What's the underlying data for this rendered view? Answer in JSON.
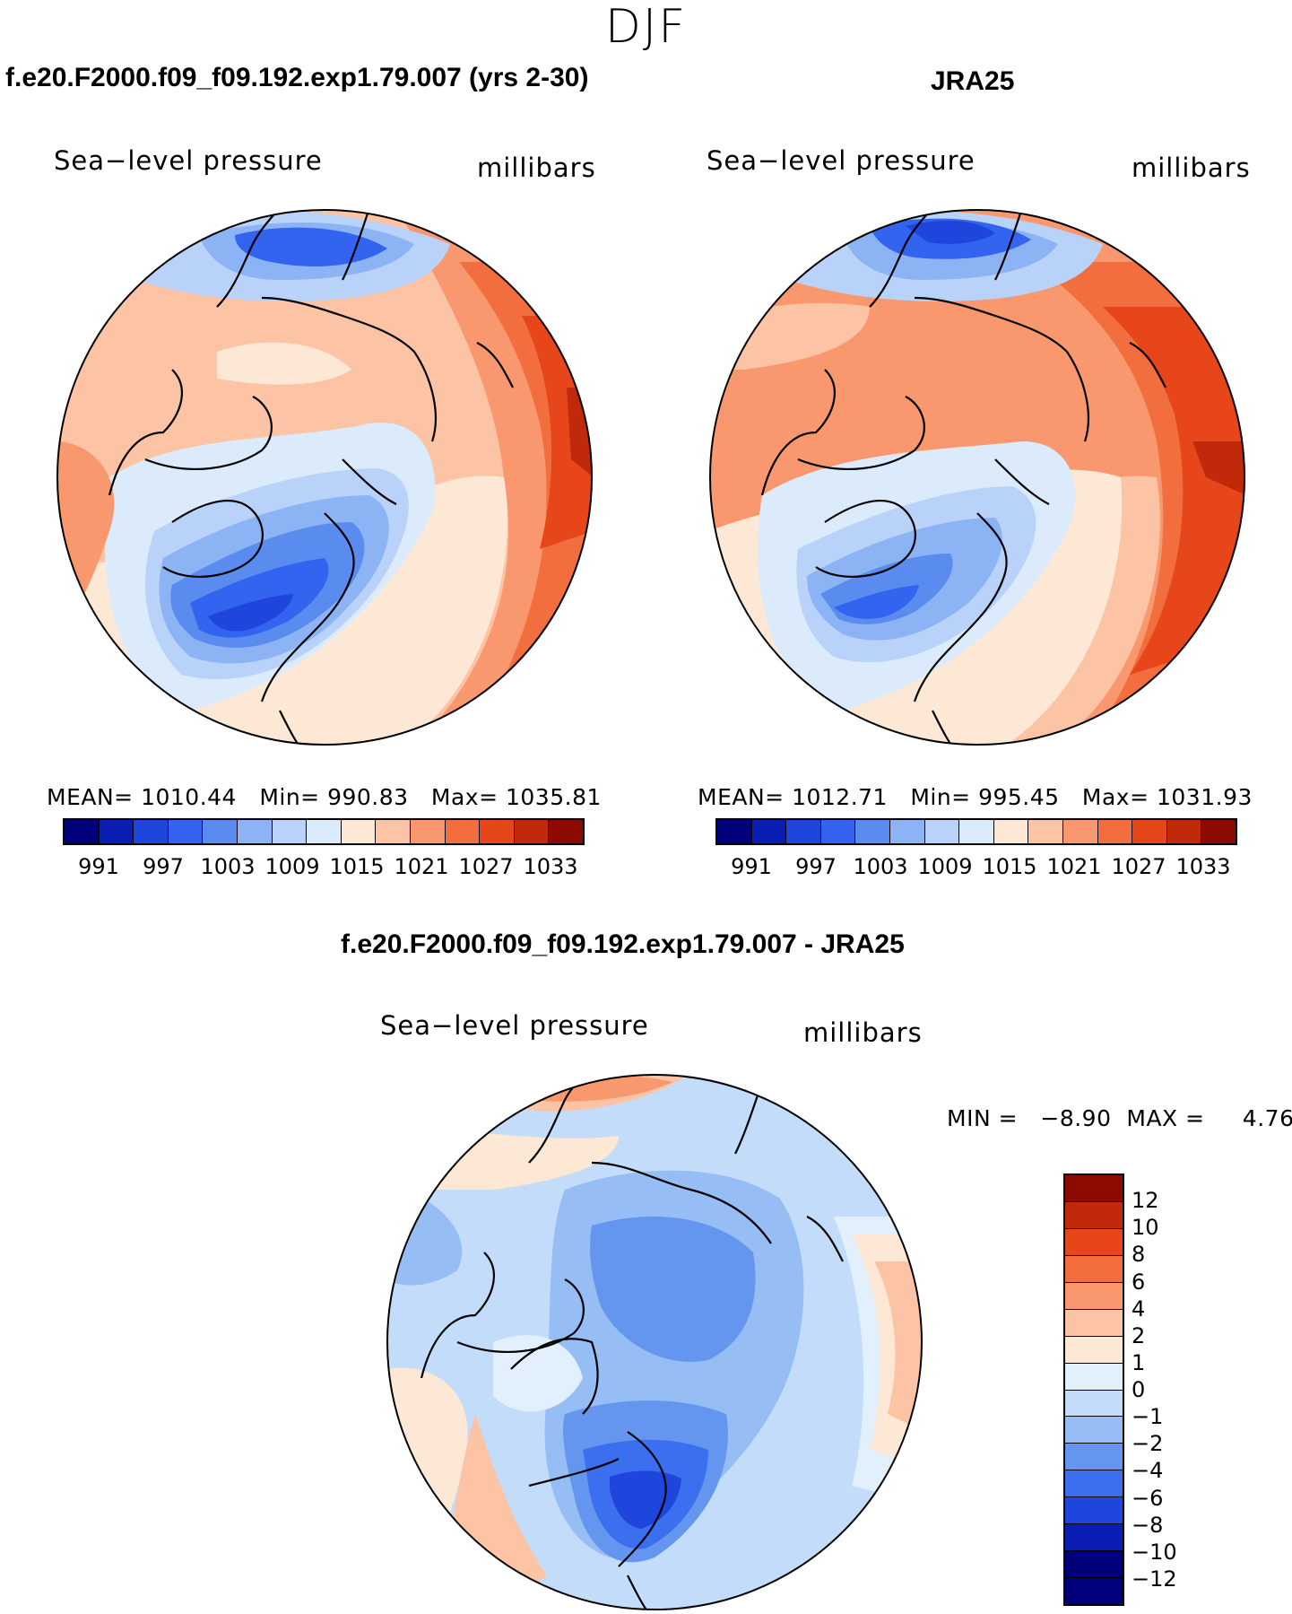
{
  "title": "DJF",
  "colors": {
    "abs_scale": [
      "#00007a",
      "#0a1eb4",
      "#1e46dc",
      "#3264f0",
      "#5a8cf0",
      "#8cb4f5",
      "#b9d2fa",
      "#dcebfc",
      "#fde8d6",
      "#fcc3a4",
      "#f9986e",
      "#f26e3e",
      "#e6461a",
      "#c02a0a",
      "#8c0a00"
    ],
    "diff_scale": [
      "#00007a",
      "#0a1eb4",
      "#1e46dc",
      "#3c6ef0",
      "#6496f0",
      "#96bef5",
      "#c3dcfa",
      "#e1f0fc",
      "#fde8d6",
      "#fcc3a4",
      "#f9986e",
      "#f26e3e",
      "#e6461a",
      "#c02a0a",
      "#8c0a00"
    ]
  },
  "panels": [
    {
      "id": "model",
      "title": "f.e20.F2000.f09_f09.192.exp1.79.007 (yrs 2-30)",
      "variable": "Sea−level pressure",
      "units": "millibars",
      "stats": {
        "mean_label": "MEAN=",
        "mean": "1010.44",
        "min_label": "Min=",
        "min": "990.83",
        "max_label": "Max=",
        "max": "1035.81"
      },
      "colorbar_labels": [
        "991",
        "997",
        "1003",
        "1009",
        "1015",
        "1021",
        "1027",
        "1033"
      ]
    },
    {
      "id": "obs",
      "title": "JRA25",
      "variable": "Sea−level pressure",
      "units": "millibars",
      "stats": {
        "mean_label": "MEAN=",
        "mean": "1012.71",
        "min_label": "Min=",
        "min": "995.45",
        "max_label": "Max=",
        "max": "1031.93"
      },
      "colorbar_labels": [
        "991",
        "997",
        "1003",
        "1009",
        "1015",
        "1021",
        "1027",
        "1033"
      ]
    },
    {
      "id": "diff",
      "title": "f.e20.F2000.f09_f09.192.exp1.79.007 - JRA25",
      "variable": "Sea−level pressure",
      "units": "millibars",
      "stats_text": "MIN =   −8.90  MAX =     4.76",
      "colorbar_labels": [
        "12",
        "10",
        "8",
        "6",
        "4",
        "2",
        "1",
        "0",
        "−1",
        "−2",
        "−4",
        "−6",
        "−8",
        "−10",
        "−12"
      ]
    }
  ]
}
